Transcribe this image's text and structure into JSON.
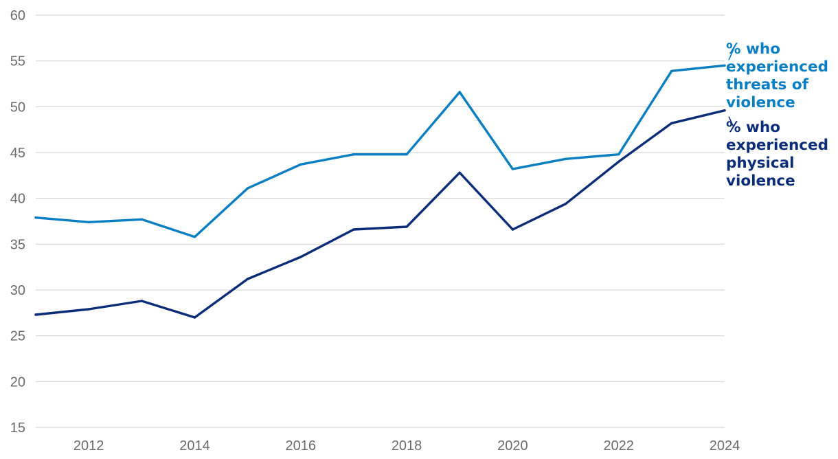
{
  "colors": {
    "threats": "#0a7ec2",
    "physical": "#0b2d78",
    "grid": "#d6d6d6",
    "tick_text": "#6b6b6b"
  },
  "chart_data": {
    "type": "line",
    "title": "",
    "xlabel": "",
    "ylabel": "",
    "x": [
      2011,
      2012,
      2013,
      2014,
      2015,
      2016,
      2017,
      2018,
      2019,
      2020,
      2021,
      2022,
      2023,
      2024
    ],
    "xlim": [
      2011,
      2024
    ],
    "ylim": [
      15,
      60
    ],
    "grid": true,
    "y_ticks": [
      "15",
      "20",
      "25",
      "30",
      "35",
      "40",
      "45",
      "50",
      "55",
      "60"
    ],
    "x_ticks": [
      "2012",
      "2014",
      "2016",
      "2018",
      "2020",
      "2022",
      "2024"
    ],
    "series": [
      {
        "key": "threats",
        "name": "% who experienced threats of violence",
        "label_lines": [
          "% who",
          "experienced",
          "threats of",
          "violence"
        ],
        "values": [
          37.9,
          37.4,
          37.7,
          35.8,
          41.1,
          43.7,
          44.8,
          44.8,
          51.6,
          43.2,
          44.3,
          44.8,
          53.9,
          54.5
        ]
      },
      {
        "key": "physical",
        "name": "% who experienced physical violence",
        "label_lines": [
          "% who",
          "experienced",
          "physical",
          "violence"
        ],
        "values": [
          27.3,
          27.9,
          28.8,
          27.0,
          31.2,
          33.6,
          36.6,
          36.9,
          42.8,
          36.6,
          39.4,
          44.0,
          48.2,
          49.6
        ]
      }
    ]
  }
}
